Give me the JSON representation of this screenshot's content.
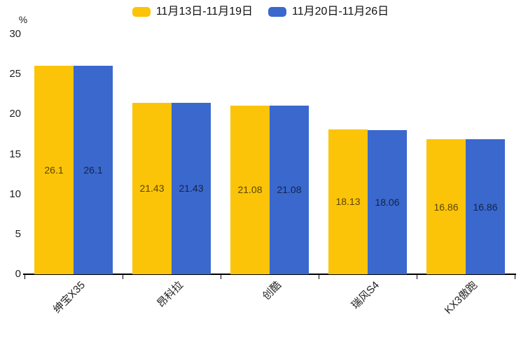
{
  "legend": {
    "items": [
      {
        "label": "11月13日-11月19日"
      },
      {
        "label": "11月20日-11月26日"
      }
    ]
  },
  "chart_data": {
    "type": "bar",
    "title": "",
    "xlabel": "",
    "ylabel": "%",
    "ylim": [
      0,
      30
    ],
    "yticks": [
      0,
      5,
      10,
      15,
      20,
      25,
      30
    ],
    "grid": false,
    "legend_position": "top-center",
    "categories": [
      "绅宝X35",
      "昂科拉",
      "创酷",
      "瑞风S4",
      "KX3傲跑"
    ],
    "series": [
      {
        "name": "11月13日-11月19日",
        "color": "#FCC408",
        "values": [
          26.1,
          21.43,
          21.08,
          18.13,
          16.86
        ]
      },
      {
        "name": "11月20日-11月26日",
        "color": "#3A68CD",
        "values": [
          26.1,
          21.43,
          21.08,
          18.06,
          16.86
        ]
      }
    ],
    "value_labels_shown": true,
    "value_label_position": "inside-middle",
    "axis_color": "#000000",
    "tick_label_color": "#222222"
  }
}
